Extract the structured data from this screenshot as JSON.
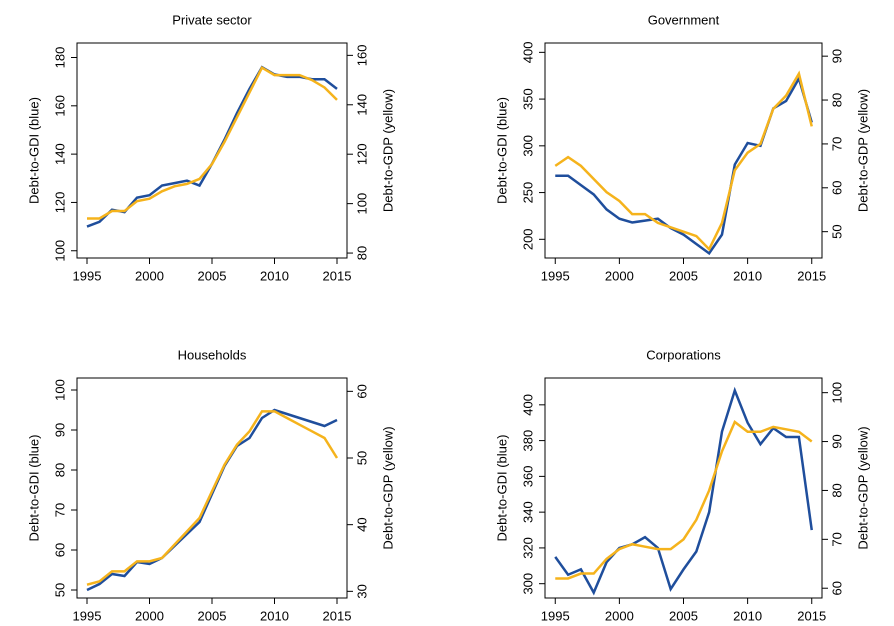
{
  "chart_data": [
    {
      "type": "line",
      "title": "Private sector",
      "ylabel": "Debt-to-GDI (blue)",
      "y2label": "Debt-to-GDP (yellow)",
      "x": [
        1995,
        1996,
        1997,
        1998,
        1999,
        2000,
        2001,
        2002,
        2003,
        2004,
        2005,
        2006,
        2007,
        2008,
        2009,
        2010,
        2011,
        2012,
        2013,
        2014,
        2015
      ],
      "xlim": [
        1994.2,
        2015.8
      ],
      "xticks": [
        1995,
        2000,
        2005,
        2010,
        2015
      ],
      "ylim": [
        97,
        186
      ],
      "yticks": [
        100,
        120,
        140,
        160,
        180
      ],
      "y2lim": [
        78,
        165
      ],
      "y2ticks": [
        80,
        100,
        120,
        140,
        160
      ],
      "series": [
        {
          "color": "#1f4e9c",
          "values": [
            110,
            112,
            117,
            116,
            122,
            123,
            127,
            128,
            129,
            127,
            136,
            146,
            157,
            167,
            176,
            173,
            172,
            172,
            171,
            171,
            167
          ]
        },
        {
          "color": "#f5b31c",
          "axis": "y2",
          "values": [
            94,
            94,
            97,
            97,
            101,
            102,
            105,
            107,
            108,
            110,
            116,
            125,
            135,
            145,
            155,
            152,
            152,
            152,
            150,
            147,
            142
          ]
        }
      ]
    },
    {
      "type": "line",
      "title": "Government",
      "ylabel": "Debt-to-GDI (blue)",
      "y2label": "Debt-to-GDP (yellow)",
      "x": [
        1995,
        1996,
        1997,
        1998,
        1999,
        2000,
        2001,
        2002,
        2003,
        2004,
        2005,
        2006,
        2007,
        2008,
        2009,
        2010,
        2011,
        2012,
        2013,
        2014,
        2015
      ],
      "xlim": [
        1994.2,
        2015.8
      ],
      "xticks": [
        1995,
        2000,
        2005,
        2010,
        2015
      ],
      "ylim": [
        180,
        410
      ],
      "yticks": [
        200,
        250,
        300,
        350,
        400
      ],
      "y2lim": [
        44,
        93
      ],
      "y2ticks": [
        50,
        60,
        70,
        80,
        90
      ],
      "series": [
        {
          "color": "#1f4e9c",
          "values": [
            268,
            268,
            258,
            248,
            232,
            222,
            218,
            220,
            222,
            212,
            205,
            195,
            185,
            205,
            280,
            303,
            300,
            340,
            348,
            372,
            325
          ]
        },
        {
          "color": "#f5b31c",
          "axis": "y2",
          "values": [
            65,
            67,
            65,
            62,
            59,
            57,
            54,
            54,
            52,
            51,
            50,
            49,
            46,
            52,
            64,
            68,
            70,
            78,
            81,
            86,
            74
          ]
        }
      ]
    },
    {
      "type": "line",
      "title": "Households",
      "ylabel": "Debt-to-GDI (blue)",
      "y2label": "Debt-to-GDP (yellow)",
      "x": [
        1995,
        1996,
        1997,
        1998,
        1999,
        2000,
        2001,
        2002,
        2003,
        2004,
        2005,
        2006,
        2007,
        2008,
        2009,
        2010,
        2011,
        2012,
        2013,
        2014,
        2015
      ],
      "xlim": [
        1994.2,
        2015.8
      ],
      "xticks": [
        1995,
        2000,
        2005,
        2010,
        2015
      ],
      "ylim": [
        48,
        103
      ],
      "yticks": [
        50,
        60,
        70,
        80,
        90,
        100
      ],
      "y2lim": [
        29,
        62
      ],
      "y2ticks": [
        30,
        40,
        50,
        60
      ],
      "series": [
        {
          "color": "#1f4e9c",
          "values": [
            50,
            51.5,
            54,
            53.5,
            57,
            56.5,
            58,
            61,
            64,
            67,
            74,
            81,
            86,
            88,
            93,
            95,
            94,
            93,
            92,
            91,
            92.5
          ]
        },
        {
          "color": "#f5b31c",
          "axis": "y2",
          "values": [
            31,
            31.5,
            33,
            33,
            34.5,
            34.5,
            35,
            37,
            39,
            41,
            45,
            49,
            52,
            54,
            57,
            57,
            56,
            55,
            54,
            53,
            50
          ]
        }
      ]
    },
    {
      "type": "line",
      "title": "Corporations",
      "ylabel": "Debt-to-GDI (blue)",
      "y2label": "Debt-to-GDP (yellow)",
      "x": [
        1995,
        1996,
        1997,
        1998,
        1999,
        2000,
        2001,
        2002,
        2003,
        2004,
        2005,
        2006,
        2007,
        2008,
        2009,
        2010,
        2011,
        2012,
        2013,
        2014,
        2015
      ],
      "xlim": [
        1994.2,
        2015.8
      ],
      "xticks": [
        1995,
        2000,
        2005,
        2010,
        2015
      ],
      "ylim": [
        292,
        415
      ],
      "yticks": [
        300,
        320,
        340,
        360,
        380,
        400
      ],
      "y2lim": [
        58,
        103
      ],
      "y2ticks": [
        60,
        70,
        80,
        90,
        100
      ],
      "series": [
        {
          "color": "#1f4e9c",
          "values": [
            315,
            305,
            308,
            295,
            312,
            320,
            322,
            326,
            320,
            297,
            308,
            318,
            340,
            385,
            408,
            390,
            378,
            387,
            382,
            382,
            330
          ]
        },
        {
          "color": "#f5b31c",
          "axis": "y2",
          "values": [
            62,
            62,
            63,
            63,
            66,
            68,
            69,
            68.5,
            68,
            68,
            70,
            74,
            80,
            88,
            94,
            92,
            92,
            93,
            92.5,
            92,
            90
          ]
        }
      ]
    }
  ]
}
